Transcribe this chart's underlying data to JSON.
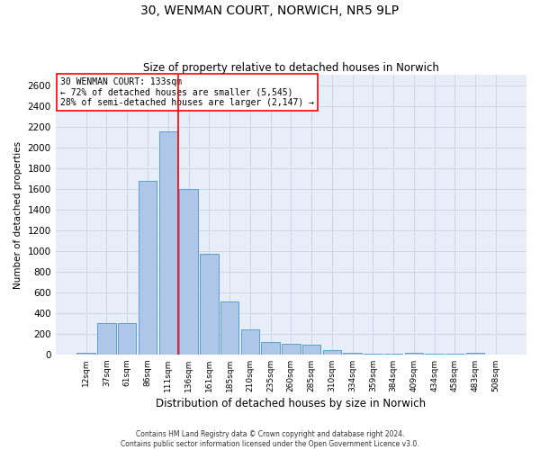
{
  "title_line1": "30, WENMAN COURT, NORWICH, NR5 9LP",
  "title_line2": "Size of property relative to detached houses in Norwich",
  "xlabel": "Distribution of detached houses by size in Norwich",
  "ylabel": "Number of detached properties",
  "categories": [
    "12sqm",
    "37sqm",
    "61sqm",
    "86sqm",
    "111sqm",
    "136sqm",
    "161sqm",
    "185sqm",
    "210sqm",
    "235sqm",
    "260sqm",
    "285sqm",
    "310sqm",
    "334sqm",
    "359sqm",
    "384sqm",
    "409sqm",
    "434sqm",
    "458sqm",
    "483sqm",
    "508sqm"
  ],
  "values": [
    20,
    300,
    300,
    1680,
    2150,
    1600,
    975,
    510,
    245,
    120,
    100,
    95,
    40,
    15,
    5,
    5,
    20,
    5,
    5,
    20,
    0
  ],
  "bar_color": "#aec6e8",
  "bar_edge_color": "#5a9fd4",
  "annotation_text_line1": "30 WENMAN COURT: 133sqm",
  "annotation_text_line2": "← 72% of detached houses are smaller (5,545)",
  "annotation_text_line3": "28% of semi-detached houses are larger (2,147) →",
  "annotation_box_color": "white",
  "annotation_box_edge_color": "red",
  "vline_color": "red",
  "vline_x": 4.5,
  "ylim": [
    0,
    2700
  ],
  "yticks": [
    0,
    200,
    400,
    600,
    800,
    1000,
    1200,
    1400,
    1600,
    1800,
    2000,
    2200,
    2400,
    2600
  ],
  "grid_color": "#ccd6e8",
  "bg_color": "#e8eef8",
  "footnote1": "Contains HM Land Registry data © Crown copyright and database right 2024.",
  "footnote2": "Contains public sector information licensed under the Open Government Licence v3.0."
}
